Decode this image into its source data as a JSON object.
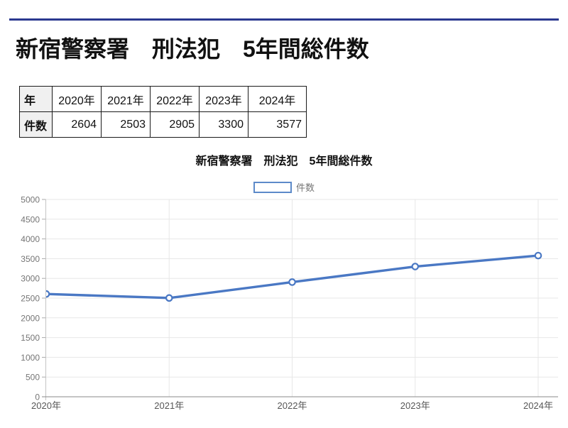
{
  "page": {
    "title": "新宿警察署　刑法犯　5年間総件数"
  },
  "table": {
    "row1_header": "年",
    "row2_header": "件数",
    "years": [
      "2020年",
      "2021年",
      "2022年",
      "2023年",
      "2024年"
    ],
    "counts": [
      "2604",
      "2503",
      "2905",
      "3300",
      "3577"
    ]
  },
  "chart_data": {
    "type": "line",
    "title": "新宿警察署　刑法犯　5年間総件数",
    "legend": {
      "label": "件数",
      "position": "top"
    },
    "categories": [
      "2020年",
      "2021年",
      "2022年",
      "2023年",
      "2024年"
    ],
    "series": [
      {
        "name": "件数",
        "values": [
          2604,
          2503,
          2905,
          3300,
          3577
        ]
      }
    ],
    "xlabel": "",
    "ylabel": "",
    "ylim": [
      0,
      5000
    ],
    "ytick_step": 500,
    "grid": true,
    "marker": "open-circle"
  },
  "colors": {
    "top_rule": "#2b3990",
    "series_line": "#4a78c4",
    "marker_fill": "#ffffff",
    "legend_border": "#5d8ac9",
    "gridline": "#e7e7e7",
    "x_axis_line": "#8a8a8a",
    "y_axis_line": "#c4c4c4",
    "tick_mark": "#a9a9a9",
    "y_tick_label": "#757575",
    "x_tick_label": "#575757",
    "legend_text": "#757575"
  }
}
